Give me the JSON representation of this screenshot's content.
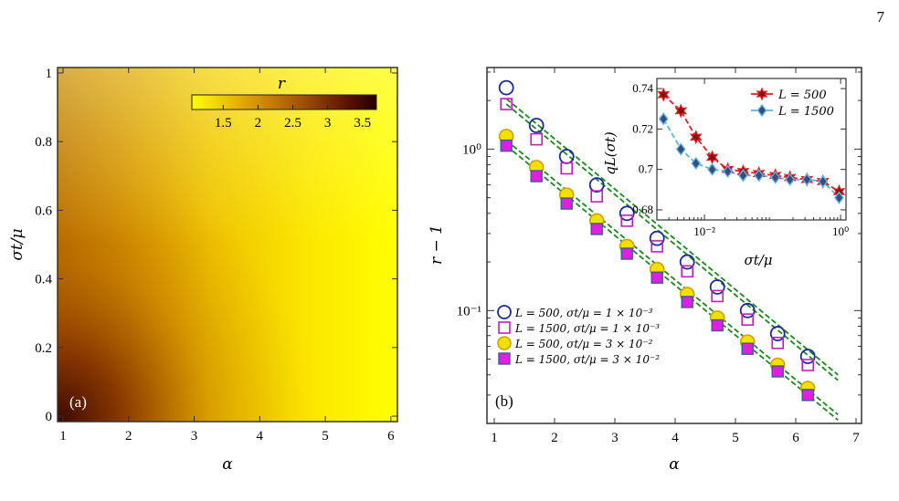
{
  "page_number": "7",
  "footer_mark": "7",
  "panel_a": {
    "label": "(a)",
    "xlabel": "α",
    "ylabel": "σt/μ",
    "x_ticks": [
      "1",
      "2",
      "3",
      "4",
      "5",
      "6"
    ],
    "y_ticks": [
      "0",
      "0.2",
      "0.4",
      "0.6",
      "0.8",
      "1"
    ],
    "colorbar": {
      "title": "r",
      "ticks": [
        "1.5",
        "2",
        "2.5",
        "3",
        "3.5"
      ],
      "colors": [
        "#ffff00",
        "#e0a000",
        "#a05000",
        "#5a1000",
        "#200000"
      ]
    }
  },
  "panel_b": {
    "label": "(b)",
    "xlabel": "α",
    "ylabel": "r − 1",
    "x_ticks": [
      "1",
      "2",
      "3",
      "4",
      "5",
      "6",
      "7"
    ],
    "y_ticks": [
      "10⁰",
      "10⁻¹"
    ],
    "legend": [
      "L = 500, σt/μ = 1 × 10⁻³",
      "L = 1500, σt/μ = 1 × 10⁻³",
      "L = 500, σt/μ = 3 × 10⁻²",
      "L = 1500, σt/μ = 3 × 10⁻²"
    ],
    "inset": {
      "xlabel": "σt/μ",
      "ylabel": "qL(σt)",
      "x_ticks": [
        "10⁻²",
        "10⁰"
      ],
      "y_ticks": [
        "0.74",
        "0.72",
        "0.7",
        "0.68"
      ],
      "legend": [
        "L = 500",
        "L = 1500"
      ]
    }
  },
  "chart_data": [
    {
      "type": "heatmap",
      "title": "",
      "xlabel": "α",
      "ylabel": "σt/μ",
      "xlim": [
        1,
        6.1
      ],
      "ylim": [
        0,
        1
      ],
      "colorbar_label": "r",
      "colorbar_range": [
        1.05,
        3.7
      ],
      "description_values": "r is largest (~3.6) at α≈1, σt/μ≈0 and decreases toward ~1 for large α"
    },
    {
      "type": "scatter",
      "title": "",
      "xlabel": "α",
      "ylabel": "r − 1",
      "yscale": "log",
      "xlim": [
        1,
        7
      ],
      "ylim": [
        0.02,
        3.2
      ],
      "x": [
        1.2,
        1.7,
        2.2,
        2.7,
        3.2,
        3.7,
        4.2,
        4.7,
        5.2,
        5.7,
        6.2
      ],
      "series": [
        {
          "name": "L = 500, σt/μ = 1 × 10⁻³",
          "color": "#1a2a9c",
          "marker": "circle-open",
          "values": [
            2.4,
            1.4,
            0.9,
            0.6,
            0.4,
            0.28,
            0.2,
            0.14,
            0.1,
            0.072,
            0.052
          ]
        },
        {
          "name": "L = 1500, σt/μ = 1 × 10⁻³",
          "color": "#c020c0",
          "marker": "square-open",
          "values": [
            1.9,
            1.15,
            0.76,
            0.51,
            0.36,
            0.25,
            0.175,
            0.123,
            0.088,
            0.063,
            0.046
          ]
        },
        {
          "name": "L = 500, σt/μ = 3 × 10⁻²",
          "color": "#d4a000",
          "marker": "circle-filled",
          "values": [
            1.2,
            0.77,
            0.52,
            0.36,
            0.25,
            0.18,
            0.126,
            0.09,
            0.064,
            0.046,
            0.033
          ]
        },
        {
          "name": "L = 1500, σt/μ = 3 × 10⁻²",
          "color": "#e020e0",
          "marker": "square-filled",
          "values": [
            1.05,
            0.68,
            0.46,
            0.32,
            0.225,
            0.16,
            0.113,
            0.081,
            0.058,
            0.042,
            0.03
          ]
        }
      ],
      "fits": [
        {
          "color": "#1a8a1a",
          "x": [
            1.2,
            6.7
          ],
          "y": [
            1.9,
            0.037
          ]
        },
        {
          "color": "#1a8a1a",
          "x": [
            1.2,
            6.7
          ],
          "y": [
            1.05,
            0.021
          ]
        }
      ]
    },
    {
      "type": "line",
      "title": "",
      "xlabel": "σt/μ",
      "ylabel": "qL(σt)",
      "xscale": "log",
      "xlim": [
        0.002,
        1.2
      ],
      "ylim": [
        0.675,
        0.745
      ],
      "x": [
        0.0025,
        0.0045,
        0.0075,
        0.013,
        0.022,
        0.037,
        0.063,
        0.11,
        0.18,
        0.32,
        0.55,
        0.95
      ],
      "series": [
        {
          "name": "L = 500",
          "color": "#e02020",
          "marker": "star",
          "values": [
            0.737,
            0.729,
            0.716,
            0.706,
            0.7,
            0.699,
            0.698,
            0.697,
            0.696,
            0.695,
            0.694,
            0.689
          ]
        },
        {
          "name": "L = 1500",
          "color": "#5ab4e8",
          "marker": "diamond",
          "values": [
            0.725,
            0.71,
            0.703,
            0.7,
            0.699,
            0.697,
            0.697,
            0.696,
            0.695,
            0.695,
            0.694,
            0.686
          ]
        }
      ]
    }
  ]
}
